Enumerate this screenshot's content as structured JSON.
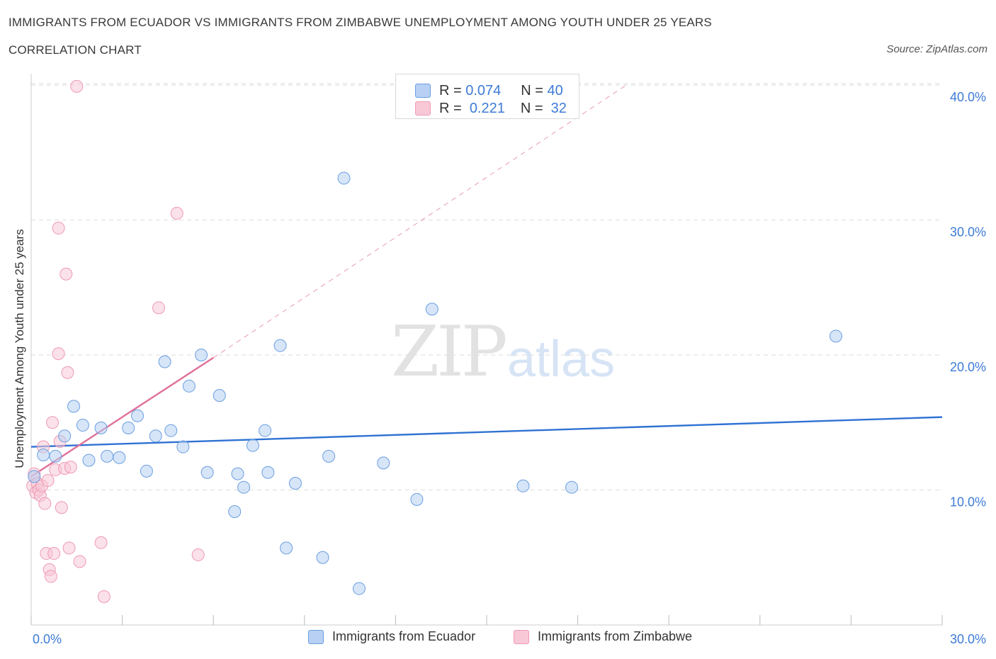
{
  "header": {
    "title": "IMMIGRANTS FROM ECUADOR VS IMMIGRANTS FROM ZIMBABWE UNEMPLOYMENT AMONG YOUTH UNDER 25 YEARS",
    "subtitle": "CORRELATION CHART",
    "source": "Source: ZipAtlas.com"
  },
  "watermark": {
    "zip": "ZIP",
    "atlas": "atlas"
  },
  "legend": {
    "ecuador": {
      "r_label": "R =",
      "r_value": "0.074",
      "n_label": "N =",
      "n_value": "40"
    },
    "zimbabwe": {
      "r_label": "R =",
      "r_value": "0.221",
      "n_label": "N =",
      "n_value": "32"
    }
  },
  "colors": {
    "ecuador_fill": "#b7d0f3",
    "ecuador_stroke": "#6a9fe0",
    "ecuador_line": "#2f72d3",
    "zimbabwe_fill": "#f8c8d7",
    "zimbabwe_stroke": "#ee9ab5",
    "zimbabwe_line": "#e0709a",
    "axis_label": "#3d7bd6",
    "grid": "#dddddd"
  },
  "chart_data": {
    "type": "scatter",
    "title": "IMMIGRANTS FROM ECUADOR VS IMMIGRANTS FROM ZIMBABWE UNEMPLOYMENT AMONG YOUTH UNDER 25 YEARS",
    "ylabel": "Unemployment Among Youth under 25 years",
    "xlabel": "",
    "xlim": [
      0,
      30
    ],
    "ylim": [
      0,
      40
    ],
    "x_tick_labels": [
      "0.0%",
      "30.0%"
    ],
    "y_ticks": [
      10,
      20,
      30,
      40
    ],
    "y_tick_labels": [
      "10.0%",
      "20.0%",
      "30.0%",
      "40.0%"
    ],
    "series": [
      {
        "name": "Immigrants from Ecuador",
        "points": [
          [
            0.1,
            11.0
          ],
          [
            0.4,
            12.6
          ],
          [
            0.8,
            12.5
          ],
          [
            1.1,
            14.0
          ],
          [
            1.4,
            16.2
          ],
          [
            1.7,
            14.8
          ],
          [
            1.9,
            12.2
          ],
          [
            2.3,
            14.6
          ],
          [
            2.5,
            12.5
          ],
          [
            2.9,
            12.4
          ],
          [
            3.2,
            14.6
          ],
          [
            3.5,
            15.5
          ],
          [
            3.8,
            11.4
          ],
          [
            4.1,
            14.0
          ],
          [
            4.4,
            19.5
          ],
          [
            4.6,
            14.4
          ],
          [
            5.0,
            13.2
          ],
          [
            5.2,
            17.7
          ],
          [
            5.6,
            20.0
          ],
          [
            5.8,
            11.3
          ],
          [
            6.2,
            17.0
          ],
          [
            6.7,
            8.4
          ],
          [
            6.8,
            11.2
          ],
          [
            7.0,
            10.2
          ],
          [
            7.3,
            13.3
          ],
          [
            7.7,
            14.4
          ],
          [
            7.8,
            11.3
          ],
          [
            8.2,
            20.7
          ],
          [
            8.4,
            5.7
          ],
          [
            8.7,
            10.5
          ],
          [
            9.6,
            5.0
          ],
          [
            9.8,
            12.5
          ],
          [
            10.3,
            33.1
          ],
          [
            10.8,
            2.7
          ],
          [
            11.6,
            12.0
          ],
          [
            12.7,
            9.3
          ],
          [
            13.2,
            23.4
          ],
          [
            16.2,
            10.3
          ],
          [
            17.8,
            10.2
          ],
          [
            26.5,
            21.4
          ]
        ]
      },
      {
        "name": "Immigrants from Zimbabwe",
        "points": [
          [
            0.05,
            10.3
          ],
          [
            0.1,
            11.2
          ],
          [
            0.15,
            9.8
          ],
          [
            0.2,
            10.5
          ],
          [
            0.25,
            10.0
          ],
          [
            0.3,
            9.6
          ],
          [
            0.35,
            10.3
          ],
          [
            0.4,
            13.2
          ],
          [
            0.45,
            9.0
          ],
          [
            0.5,
            5.3
          ],
          [
            0.55,
            10.7
          ],
          [
            0.6,
            4.1
          ],
          [
            0.65,
            3.6
          ],
          [
            0.7,
            15.0
          ],
          [
            0.75,
            5.3
          ],
          [
            0.8,
            11.5
          ],
          [
            0.9,
            20.1
          ],
          [
            0.95,
            13.6
          ],
          [
            1.0,
            8.7
          ],
          [
            1.1,
            11.6
          ],
          [
            1.15,
            26.0
          ],
          [
            1.2,
            18.7
          ],
          [
            1.25,
            5.7
          ],
          [
            1.3,
            11.7
          ],
          [
            1.6,
            4.7
          ],
          [
            0.9,
            29.4
          ],
          [
            1.5,
            39.9
          ],
          [
            2.3,
            6.1
          ],
          [
            2.4,
            2.1
          ],
          [
            4.2,
            23.5
          ],
          [
            4.8,
            30.5
          ],
          [
            5.5,
            5.2
          ]
        ]
      }
    ],
    "trendlines": [
      {
        "series": "Immigrants from Ecuador",
        "x_range": [
          0,
          30
        ],
        "y_start": 13.2,
        "y_end": 15.4,
        "style": "solid"
      },
      {
        "series": "Immigrants from Zimbabwe",
        "x_range": [
          0,
          6.0
        ],
        "y_start": 11.0,
        "y_end": 19.8,
        "style": "solid"
      },
      {
        "series": "Immigrants from Zimbabwe",
        "x_range": [
          6.0,
          19.6
        ],
        "y_start": 19.8,
        "y_end": 40.0,
        "style": "dashed"
      }
    ]
  },
  "bottom_legend": {
    "ecuador": "Immigrants from Ecuador",
    "zimbabwe": "Immigrants from Zimbabwe"
  }
}
